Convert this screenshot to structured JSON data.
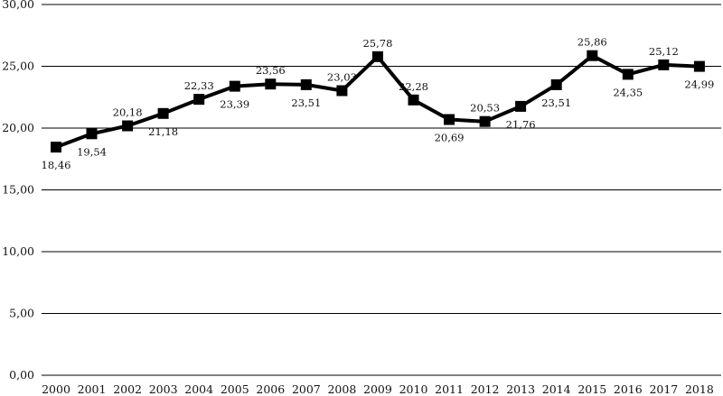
{
  "chart_data": {
    "type": "line",
    "title": "",
    "xlabel": "",
    "ylabel": "",
    "categories": [
      "2000",
      "2001",
      "2002",
      "2003",
      "2004",
      "2005",
      "2006",
      "2007",
      "2008",
      "2009",
      "2010",
      "2011",
      "2012",
      "2013",
      "2014",
      "2015",
      "2016",
      "2017",
      "2018"
    ],
    "series": [
      {
        "values": [
          18.46,
          19.54,
          20.18,
          21.18,
          22.33,
          23.39,
          23.56,
          23.51,
          23.03,
          25.78,
          22.28,
          20.69,
          20.53,
          21.76,
          23.51,
          25.86,
          24.35,
          25.12,
          24.99
        ],
        "data_labels": [
          "18,46",
          "19,54",
          "20,18",
          "21,18",
          "22,33",
          "23,39",
          "23,56",
          "23,51",
          "23,03",
          "25,78",
          "22,28",
          "20,69",
          "20,53",
          "21,76",
          "23,51",
          "25,86",
          "24,35",
          "25,12",
          "24,99"
        ]
      }
    ],
    "ylim": [
      0,
      30
    ],
    "yticks": [
      0,
      5,
      10,
      15,
      20,
      25,
      30
    ],
    "ytick_labels": [
      "0,00",
      "5,00",
      "10,00",
      "15,00",
      "20,00",
      "25,00",
      "30,00"
    ],
    "grid": "horizontal",
    "legend": "none",
    "marker": "square",
    "colors": {
      "line": "#000000",
      "grid": "#000000",
      "text": "#111111"
    }
  }
}
